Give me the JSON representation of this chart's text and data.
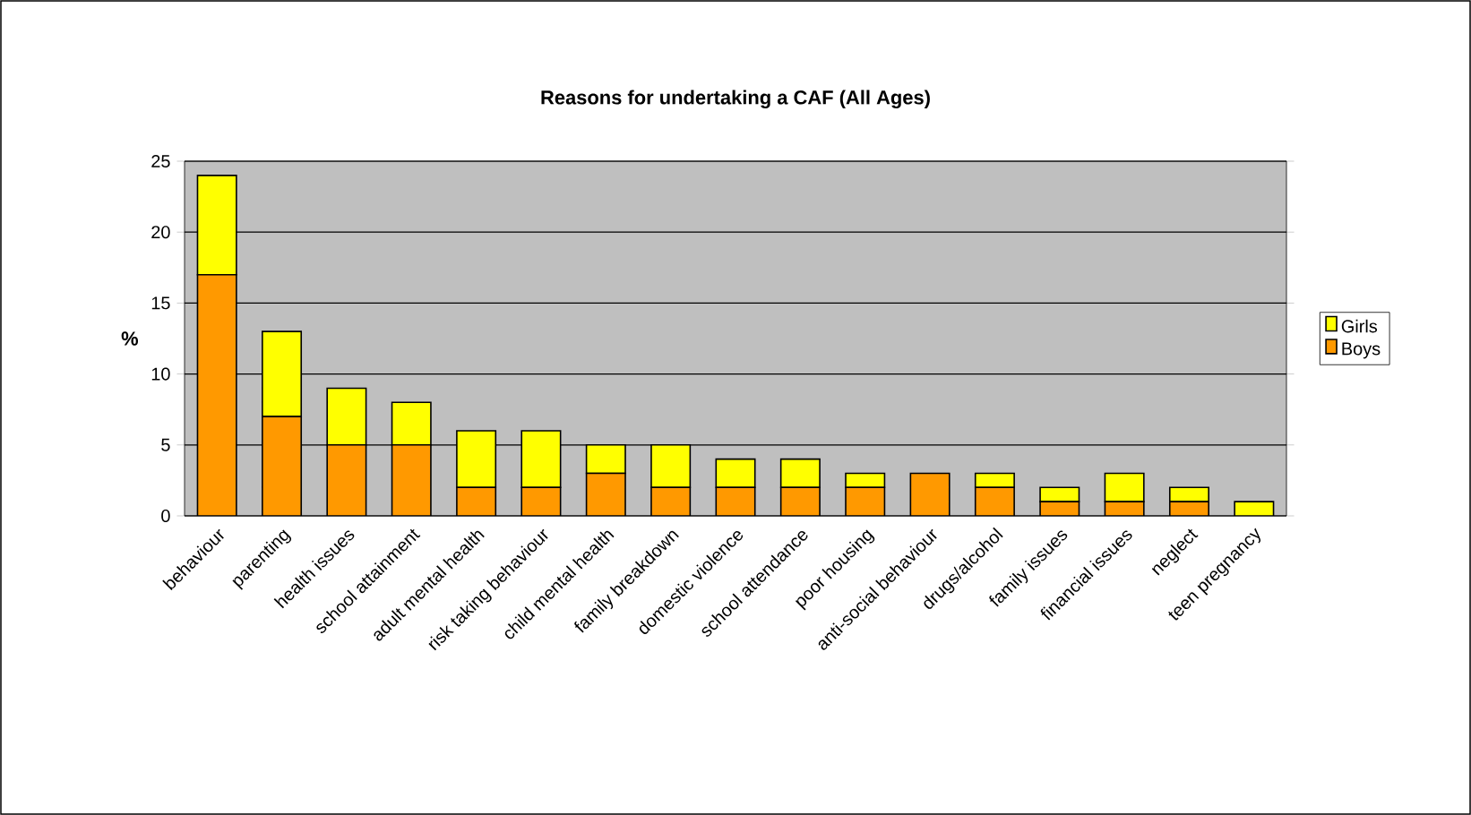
{
  "chart_data": {
    "type": "bar",
    "title": "Reasons for undertaking a CAF (All Ages)",
    "ylabel": "%",
    "categories": [
      "behaviour",
      "parenting",
      "health issues",
      "school attainment",
      "adult mental health",
      "risk taking behaviour",
      "child mental health",
      "family breakdown",
      "domestic violence",
      "school attendance",
      "poor housing",
      "anti-social behaviour",
      "drugs/alcohol",
      "family issues",
      "financial issues",
      "neglect",
      "teen pregnancy"
    ],
    "series": [
      {
        "name": "Boys",
        "color": "#ff9900",
        "values": [
          17,
          7,
          5,
          5,
          2,
          2,
          3,
          2,
          2,
          2,
          2,
          3,
          2,
          1,
          1,
          1,
          0
        ]
      },
      {
        "name": "Girls",
        "color": "#ffff00",
        "values": [
          7,
          6,
          4,
          3,
          4,
          4,
          2,
          3,
          2,
          2,
          1,
          0,
          1,
          1,
          2,
          1,
          1
        ]
      }
    ],
    "stacked": true,
    "ylim": [
      0,
      25
    ],
    "yticks": [
      0,
      5,
      10,
      15,
      20,
      25
    ],
    "grid": "y",
    "legend": "right"
  }
}
